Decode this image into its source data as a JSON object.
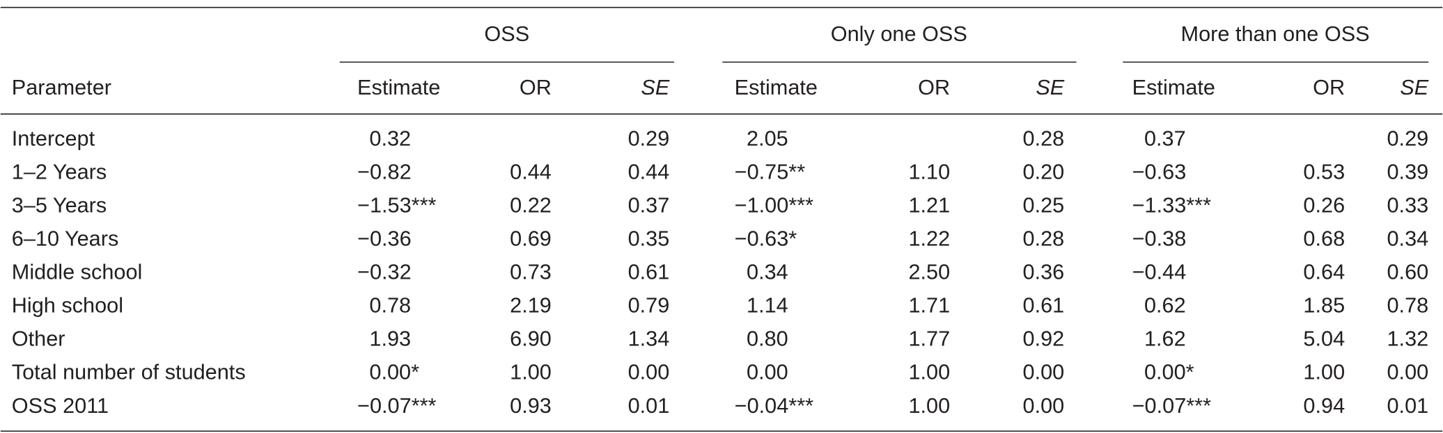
{
  "table": {
    "group_headers": [
      "OSS",
      "Only one OSS",
      "More than one OSS"
    ],
    "column_headers": [
      "Parameter",
      "Estimate",
      "OR",
      "SE",
      "Estimate",
      "OR",
      "SE",
      "Estimate",
      "OR",
      "SE"
    ],
    "rows": [
      [
        "Intercept",
        "0.32",
        null,
        "0.29",
        "2.05",
        null,
        "0.28",
        "0.37",
        null,
        "0.29"
      ],
      [
        "1–2 Years",
        "−0.82",
        "0.44",
        "0.44",
        "−0.75**",
        "1.10",
        "0.20",
        "−0.63",
        "0.53",
        "0.39"
      ],
      [
        "3–5 Years",
        "−1.53***",
        "0.22",
        "0.37",
        "−1.00***",
        "1.21",
        "0.25",
        "−1.33***",
        "0.26",
        "0.33"
      ],
      [
        "6–10 Years",
        "−0.36",
        "0.69",
        "0.35",
        "−0.63*",
        "1.22",
        "0.28",
        "−0.38",
        "0.68",
        "0.34"
      ],
      [
        "Middle school",
        "−0.32",
        "0.73",
        "0.61",
        "0.34",
        "2.50",
        "0.36",
        "−0.44",
        "0.64",
        "0.60"
      ],
      [
        "High school",
        "0.78",
        "2.19",
        "0.79",
        "1.14",
        "1.71",
        "0.61",
        "0.62",
        "1.85",
        "0.78"
      ],
      [
        "Other",
        "1.93",
        "6.90",
        "1.34",
        "0.80",
        "1.77",
        "0.92",
        "1.62",
        "5.04",
        "1.32"
      ],
      [
        "Total number of students",
        "0.00*",
        "1.00",
        "0.00",
        "0.00",
        "1.00",
        "0.00",
        "0.00*",
        "1.00",
        "0.00"
      ],
      [
        "OSS 2011",
        "−0.07***",
        "0.93",
        "0.01",
        "−0.04***",
        "1.00",
        "0.00",
        "−0.07***",
        "0.94",
        "0.01"
      ]
    ]
  }
}
